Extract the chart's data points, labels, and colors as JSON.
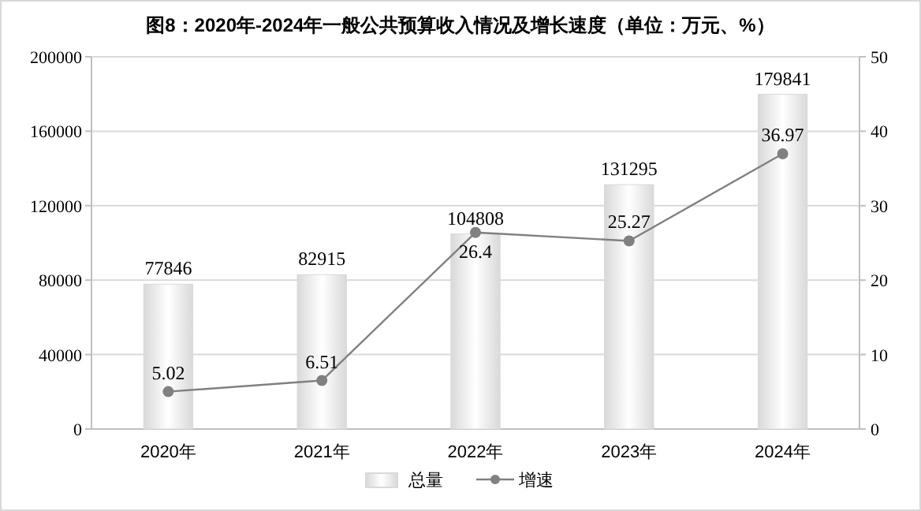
{
  "chart_data": {
    "type": "bar",
    "title": "图8：2020年-2024年一般公共预算收入情况及增长速度（单位：万元、%）",
    "categories": [
      "2020年",
      "2021年",
      "2022年",
      "2023年",
      "2024年"
    ],
    "series": [
      {
        "name": "总量",
        "color": "#d9d9d9",
        "values": [
          77846,
          82915,
          104808,
          131295,
          179841
        ]
      },
      {
        "name": "增速",
        "type": "line",
        "axis": "y2",
        "color": "#808080",
        "marker": "circle",
        "values": [
          5.02,
          6.51,
          26.4,
          25.27,
          36.97
        ]
      }
    ],
    "ylim": [
      0,
      200000
    ],
    "yticks": [
      0,
      40000,
      80000,
      120000,
      160000,
      200000
    ],
    "y2lim": [
      0,
      50
    ],
    "y2ticks": [
      0,
      10,
      20,
      30,
      40,
      50
    ],
    "data_labels": true,
    "grid": "y",
    "legend": "bottom"
  }
}
